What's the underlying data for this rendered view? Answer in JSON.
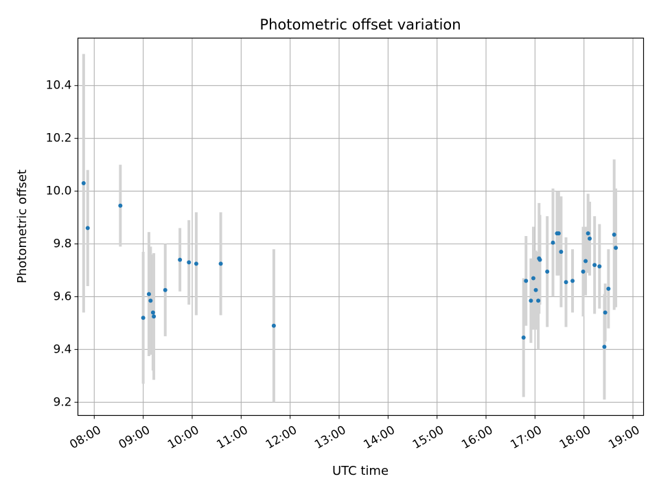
{
  "chart_data": {
    "type": "scatter",
    "title": "Photometric offset variation",
    "xlabel": "UTC time",
    "ylabel": "Photometric offset",
    "xlim": [
      "07:40",
      "19:13"
    ],
    "ylim": [
      9.15,
      10.58
    ],
    "grid": true,
    "x_ticks": [
      "08:00",
      "09:00",
      "10:00",
      "11:00",
      "12:00",
      "13:00",
      "14:00",
      "15:00",
      "16:00",
      "17:00",
      "18:00",
      "19:00"
    ],
    "y_ticks": [
      9.2,
      9.4,
      9.6,
      9.8,
      10.0,
      10.2,
      10.4
    ],
    "point_color": "#1f77b4",
    "errorbar_color": "#d3d3d3",
    "series": [
      {
        "points": [
          {
            "x": "07:47",
            "y": 10.03,
            "yerr": 0.49
          },
          {
            "x": "07:52",
            "y": 9.86,
            "yerr": 0.22
          },
          {
            "x": "08:32",
            "y": 9.945,
            "yerr": 0.155
          },
          {
            "x": "09:00",
            "y": 9.52,
            "yerr": 0.25
          },
          {
            "x": "09:07",
            "y": 9.61,
            "yerr": 0.235
          },
          {
            "x": "09:09",
            "y": 9.585,
            "yerr": 0.205
          },
          {
            "x": "09:12",
            "y": 9.54,
            "yerr": 0.22
          },
          {
            "x": "09:13",
            "y": 9.525,
            "yerr": 0.24
          },
          {
            "x": "09:27",
            "y": 9.625,
            "yerr": 0.175
          },
          {
            "x": "09:45",
            "y": 9.74,
            "yerr": 0.12
          },
          {
            "x": "09:56",
            "y": 9.73,
            "yerr": 0.16
          },
          {
            "x": "10:05",
            "y": 9.725,
            "yerr": 0.195
          },
          {
            "x": "10:35",
            "y": 9.725,
            "yerr": 0.195
          },
          {
            "x": "11:40",
            "y": 9.49,
            "yerr": 0.29
          },
          {
            "x": "16:46",
            "y": 9.445,
            "yerr": 0.225
          },
          {
            "x": "16:49",
            "y": 9.66,
            "yerr": 0.17
          },
          {
            "x": "16:55",
            "y": 9.585,
            "yerr": 0.16
          },
          {
            "x": "16:58",
            "y": 9.67,
            "yerr": 0.195
          },
          {
            "x": "17:01",
            "y": 9.625,
            "yerr": 0.15
          },
          {
            "x": "17:04",
            "y": 9.585,
            "yerr": 0.185
          },
          {
            "x": "17:05",
            "y": 9.745,
            "yerr": 0.21
          },
          {
            "x": "17:06",
            "y": 9.74,
            "yerr": 0.17
          },
          {
            "x": "17:15",
            "y": 9.695,
            "yerr": 0.21
          },
          {
            "x": "17:22",
            "y": 9.805,
            "yerr": 0.205
          },
          {
            "x": "17:27",
            "y": 9.84,
            "yerr": 0.16
          },
          {
            "x": "17:29",
            "y": 9.84,
            "yerr": 0.16
          },
          {
            "x": "17:32",
            "y": 9.77,
            "yerr": 0.21
          },
          {
            "x": "17:38",
            "y": 9.655,
            "yerr": 0.17
          },
          {
            "x": "17:46",
            "y": 9.66,
            "yerr": 0.12
          },
          {
            "x": "17:59",
            "y": 9.695,
            "yerr": 0.17
          },
          {
            "x": "18:02",
            "y": 9.735,
            "yerr": 0.13
          },
          {
            "x": "18:05",
            "y": 9.84,
            "yerr": 0.15
          },
          {
            "x": "18:07",
            "y": 9.82,
            "yerr": 0.14
          },
          {
            "x": "18:13",
            "y": 9.72,
            "yerr": 0.185
          },
          {
            "x": "18:19",
            "y": 9.715,
            "yerr": 0.16
          },
          {
            "x": "18:25",
            "y": 9.41,
            "yerr": 0.2
          },
          {
            "x": "18:26",
            "y": 9.54,
            "yerr": 0.11
          },
          {
            "x": "18:30",
            "y": 9.63,
            "yerr": 0.15
          },
          {
            "x": "18:37",
            "y": 9.835,
            "yerr": 0.285
          },
          {
            "x": "18:39",
            "y": 9.785,
            "yerr": 0.225
          }
        ]
      }
    ]
  }
}
